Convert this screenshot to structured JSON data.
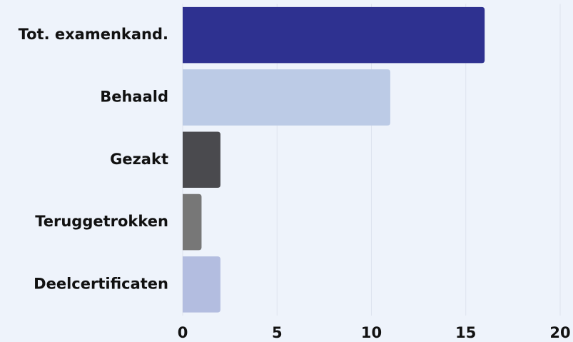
{
  "chart_data": {
    "type": "barh",
    "categories": [
      "Tot. examenkand.",
      "Behaald",
      "Gezakt",
      "Teruggetrokken",
      "Deelcertificaten"
    ],
    "values": [
      16,
      11,
      2,
      1,
      2
    ],
    "colors": [
      "#2e3190",
      "#bccbe6",
      "#4a4a4e",
      "#777777",
      "#b3bde0"
    ],
    "xlim": [
      0,
      20
    ],
    "xticks": [
      0,
      5,
      10,
      15,
      20
    ],
    "grid": true
  }
}
